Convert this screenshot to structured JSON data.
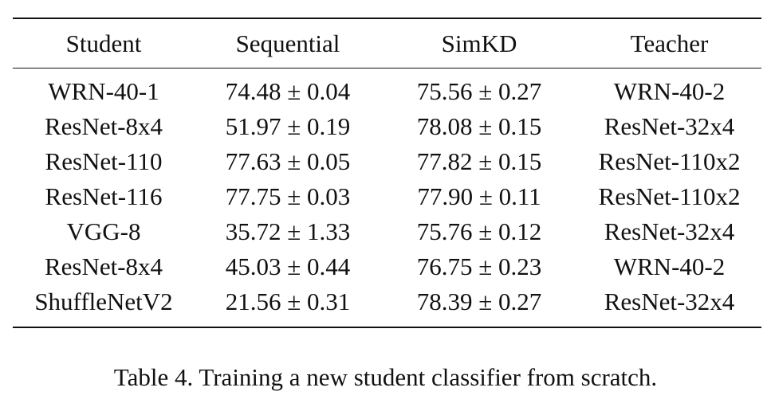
{
  "table": {
    "headers": [
      "Student",
      "Sequential",
      "SimKD",
      "Teacher"
    ],
    "rows": [
      [
        "WRN-40-1",
        "74.48 ± 0.04",
        "75.56 ± 0.27",
        "WRN-40-2"
      ],
      [
        "ResNet-8x4",
        "51.97 ± 0.19",
        "78.08 ± 0.15",
        "ResNet-32x4"
      ],
      [
        "ResNet-110",
        "77.63 ± 0.05",
        "77.82 ± 0.15",
        "ResNet-110x2"
      ],
      [
        "ResNet-116",
        "77.75 ± 0.03",
        "77.90 ± 0.11",
        "ResNet-110x2"
      ],
      [
        "VGG-8",
        "35.72 ± 1.33",
        "75.76 ± 0.12",
        "ResNet-32x4"
      ],
      [
        "ResNet-8x4",
        "45.03 ± 0.44",
        "76.75 ± 0.23",
        "WRN-40-2"
      ],
      [
        "ShuffleNetV2",
        "21.56 ± 0.31",
        "78.39 ± 0.27",
        "ResNet-32x4"
      ]
    ]
  },
  "caption": "Table 4. Training a new student classifier from scratch."
}
